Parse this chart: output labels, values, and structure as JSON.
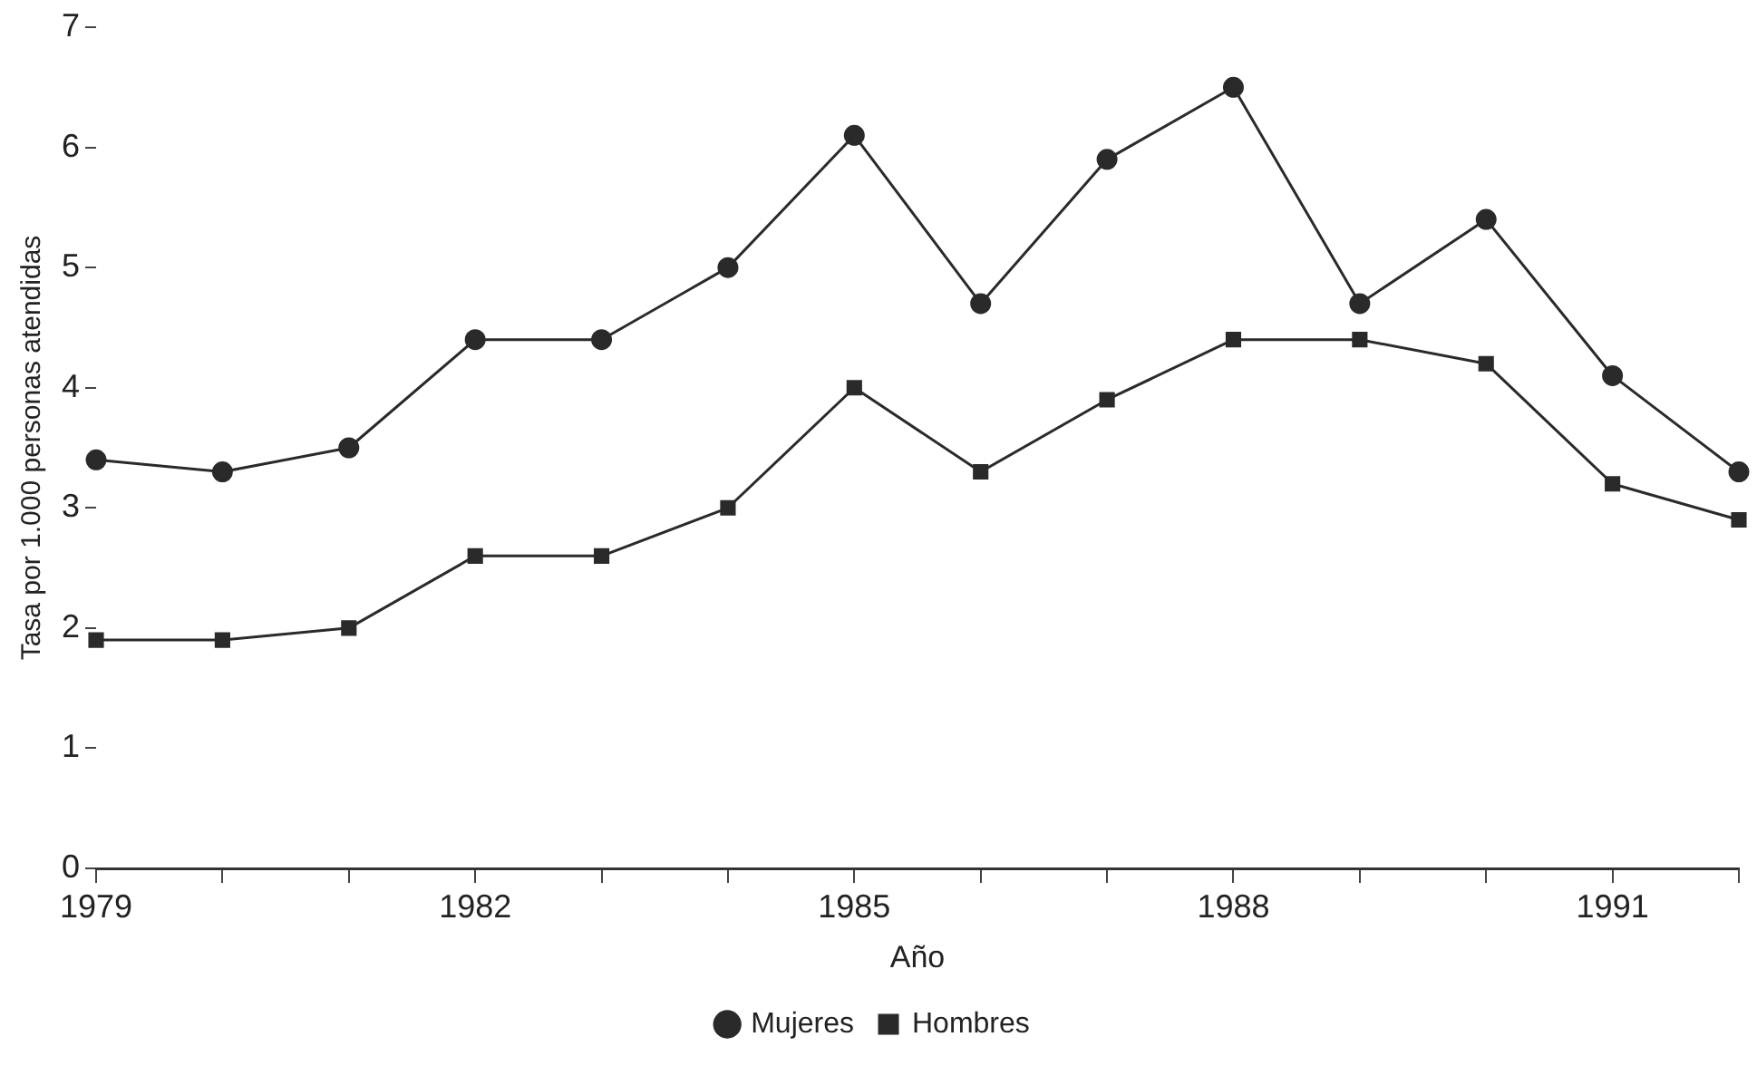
{
  "chart_data": {
    "type": "line",
    "xlabel": "Año",
    "ylabel": "Tasa por 1.000 personas atendidas",
    "x": [
      1979,
      1980,
      1981,
      1982,
      1983,
      1984,
      1985,
      1986,
      1987,
      1988,
      1989,
      1990,
      1991,
      1992
    ],
    "series": [
      {
        "name": "Mujeres",
        "color": "#2a2a2a",
        "marker": "circle",
        "values": [
          3.4,
          3.3,
          3.5,
          4.4,
          4.4,
          5.0,
          6.1,
          4.7,
          5.9,
          6.5,
          4.7,
          5.4,
          4.1,
          3.3
        ]
      },
      {
        "name": "Hombres",
        "color": "#2a2a2a",
        "marker": "square",
        "values": [
          1.9,
          1.9,
          2.0,
          2.6,
          2.6,
          3.0,
          4.0,
          3.3,
          3.9,
          4.4,
          4.4,
          4.2,
          3.2,
          2.9
        ]
      }
    ],
    "xlim": [
      1979,
      1992
    ],
    "xticks": [
      1979,
      {
        "value": 1980,
        "label": null
      },
      {
        "value": 1981,
        "label": null
      },
      1982,
      {
        "value": 1983,
        "label": null
      },
      {
        "value": 1984,
        "label": null
      },
      1985,
      {
        "value": 1986,
        "label": null
      },
      {
        "value": 1987,
        "label": null
      },
      1988,
      {
        "value": 1989,
        "label": null
      },
      {
        "value": 1990,
        "label": null
      },
      1991,
      {
        "value": 1992,
        "label": null
      }
    ],
    "ylim": [
      0,
      7
    ],
    "yticks": [
      0,
      1,
      2,
      3,
      4,
      5,
      6,
      7
    ],
    "grid": false,
    "legend": "bottom",
    "line_style": "solid"
  }
}
